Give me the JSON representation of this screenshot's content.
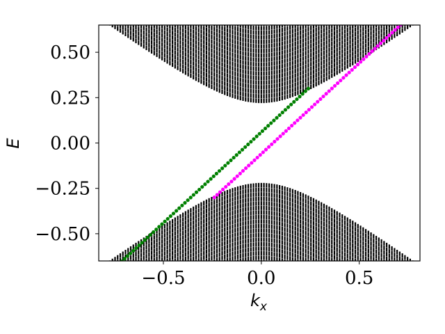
{
  "chart_data": {
    "type": "scatter",
    "title": "",
    "xlabel": "k",
    "xlabel_sub": "x",
    "ylabel": "E",
    "xlim": [
      -0.83,
      0.81
    ],
    "ylim": [
      -0.65,
      0.65
    ],
    "x_ticks": [
      {
        "value": -0.5,
        "label": "−0.5"
      },
      {
        "value": 0.0,
        "label": "0.0"
      },
      {
        "value": 0.5,
        "label": "0.5"
      }
    ],
    "y_ticks": [
      {
        "value": 0.5,
        "label": "0.50"
      },
      {
        "value": 0.25,
        "label": "0.25"
      },
      {
        "value": 0.0,
        "label": "0.00"
      },
      {
        "value": -0.25,
        "label": "−0.25"
      },
      {
        "value": -0.5,
        "label": "−0.50"
      }
    ],
    "grid": false,
    "bulk_bands": {
      "color": "#000000",
      "gap_half_width": 0.22,
      "k_range": [
        -0.8,
        0.8
      ],
      "num_k": 121,
      "states_per_k": 22
    },
    "series": [
      {
        "color": "#008000",
        "marker": "circle",
        "slope": 1.0,
        "intercept": 0.06,
        "x_range": [
          -0.8,
          0.24
        ],
        "num_points": 72
      },
      {
        "color": "#ff00ff",
        "marker": "circle",
        "slope": 1.0,
        "intercept": -0.06,
        "x_range": [
          -0.24,
          0.8
        ],
        "num_points": 72
      }
    ]
  }
}
